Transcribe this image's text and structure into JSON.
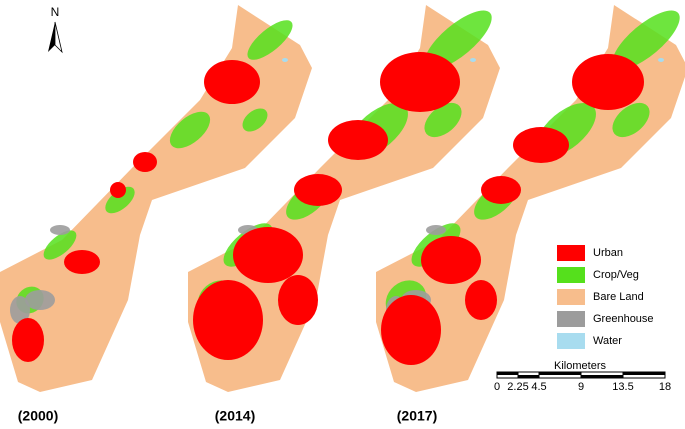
{
  "north_arrow": {
    "label": "N"
  },
  "maps": [
    {
      "label": "(2000)"
    },
    {
      "label": "(2014)"
    },
    {
      "label": "(2017)"
    }
  ],
  "legend": [
    {
      "label": "Urban",
      "color": "#ff0000"
    },
    {
      "label": "Crop/Veg",
      "color": "#55e01c"
    },
    {
      "label": "Bare Land",
      "color": "#f7bd8c"
    },
    {
      "label": "Greenhouse",
      "color": "#9c9c9c"
    },
    {
      "label": "Water",
      "color": "#a8dcef"
    }
  ],
  "scale_bar": {
    "title": "Kilometers",
    "ticks": [
      0,
      2.25,
      4.5,
      9,
      13.5,
      18
    ]
  }
}
